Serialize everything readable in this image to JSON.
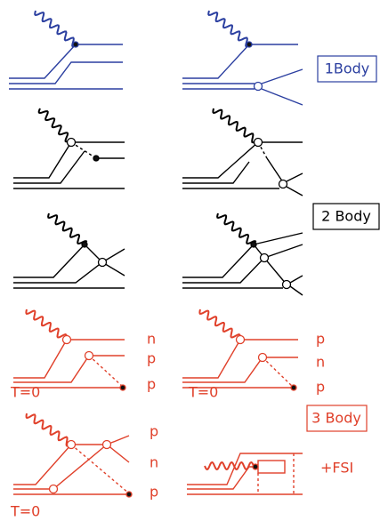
{
  "boxes": {
    "one_body": "1Body",
    "two_body": "2 Body",
    "three_body": "3 Body"
  },
  "nucleon_labels": {
    "row4_left": [
      "n",
      "p",
      "p"
    ],
    "row4_right": [
      "p",
      "n",
      "p"
    ],
    "row5_left": [
      "p",
      "n",
      "p"
    ]
  },
  "isospin_labels": [
    "T=0",
    "T=0",
    "T=0"
  ],
  "fsi": "+FSI"
}
